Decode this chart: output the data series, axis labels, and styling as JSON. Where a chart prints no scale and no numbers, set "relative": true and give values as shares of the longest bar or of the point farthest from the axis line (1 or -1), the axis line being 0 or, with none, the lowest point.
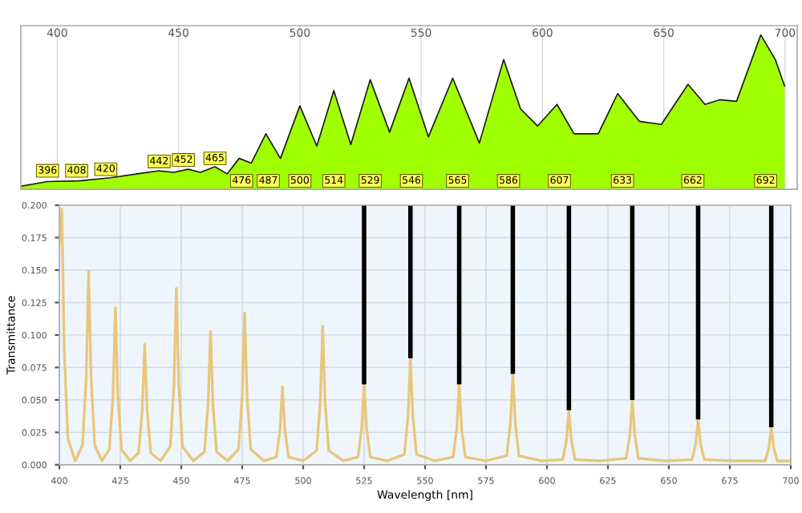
{
  "chart_data": [
    {
      "type": "area",
      "relative": true,
      "xlim": [
        385,
        705
      ],
      "xticks": [
        400,
        450,
        500,
        550,
        600,
        650,
        700
      ],
      "grid": true,
      "tick_labels": "x",
      "x": [
        385,
        396,
        409,
        422,
        433,
        442,
        448,
        454,
        459,
        465,
        470,
        475,
        480,
        486,
        492,
        500,
        507,
        514,
        521,
        529,
        537,
        545,
        553,
        563,
        574,
        584,
        591,
        598,
        606,
        613,
        623,
        631,
        640,
        649,
        660,
        667,
        673,
        680,
        690,
        696,
        699.8
      ],
      "series": [
        {
          "color": "#1a1a1a",
          "values": [
            0.02,
            0.05,
            0.055,
            0.075,
            0.1,
            0.12,
            0.11,
            0.13,
            0.11,
            0.146,
            0.1,
            0.2,
            0.17,
            0.36,
            0.2,
            0.54,
            0.28,
            0.64,
            0.29,
            0.71,
            0.37,
            0.72,
            0.34,
            0.72,
            0.3,
            0.84,
            0.52,
            0.41,
            0.55,
            0.36,
            0.36,
            0.62,
            0.44,
            0.42,
            0.68,
            0.55,
            0.58,
            0.57,
            1.0,
            0.84,
            0.67
          ],
          "colors": [
            "#2a0033",
            "#4b0060",
            "#5a00a0",
            "#4a00c8",
            "#3000e0",
            "#1a10ff",
            "#0030ff",
            "#0050ff",
            "#0070ff",
            "#0090ff",
            "#00a8ff",
            "#00c0f0",
            "#00e0e0",
            "#00f0c0",
            "#00ff90",
            "#00ff40",
            "#20ff00",
            "#40ff00",
            "#60ff00",
            "#80ff00",
            "#a0ff00",
            "#c0ff00",
            "#e0ff00",
            "#f8ff00",
            "#ffff00",
            "#ffe800",
            "#ffd000",
            "#ffb800",
            "#ffa000",
            "#ff8000",
            "#ff5000",
            "#ff3000",
            "#ff1000",
            "#f00000",
            "#e00000",
            "#d00000",
            "#c00000",
            "#b00000",
            "#a00000",
            "#900000",
            "#800000"
          ]
        }
      ],
      "annotations": [
        {
          "text": "396",
          "x": 396,
          "y": 0.12
        },
        {
          "text": "408",
          "x": 408,
          "y": 0.12
        },
        {
          "text": "420",
          "x": 420,
          "y": 0.13
        },
        {
          "text": "442",
          "x": 442,
          "y": 0.18
        },
        {
          "text": "452",
          "x": 452,
          "y": 0.19
        },
        {
          "text": "465",
          "x": 465,
          "y": 0.2
        },
        {
          "text": "476",
          "x": 476,
          "y": 0.055
        },
        {
          "text": "487",
          "x": 487,
          "y": 0.055
        },
        {
          "text": "500",
          "x": 500,
          "y": 0.055
        },
        {
          "text": "514",
          "x": 514,
          "y": 0.055
        },
        {
          "text": "529",
          "x": 529,
          "y": 0.055
        },
        {
          "text": "546",
          "x": 546,
          "y": 0.055
        },
        {
          "text": "565",
          "x": 565,
          "y": 0.055
        },
        {
          "text": "586",
          "x": 586,
          "y": 0.055
        },
        {
          "text": "607",
          "x": 607,
          "y": 0.055
        },
        {
          "text": "633",
          "x": 633,
          "y": 0.055
        },
        {
          "text": "662",
          "x": 662,
          "y": 0.055
        },
        {
          "text": "692",
          "x": 692,
          "y": 0.055
        }
      ]
    },
    {
      "type": "line",
      "xlabel": "Wavelength [nm]",
      "ylabel": "Transmittance",
      "grid": true,
      "xlim": [
        400,
        700
      ],
      "xticks": [
        400,
        425,
        450,
        475,
        500,
        525,
        550,
        575,
        600,
        625,
        650,
        675,
        700
      ],
      "ylim": [
        0,
        0.2
      ],
      "yticks": [
        {
          "value": 0,
          "label": "0.000"
        },
        {
          "value": 0.025,
          "label": "0.025"
        },
        {
          "value": 0.05,
          "label": "0.050"
        },
        {
          "value": 0.075,
          "label": "0.075"
        },
        {
          "value": 0.1,
          "label": "0.100"
        },
        {
          "value": 0.125,
          "label": "0.125"
        },
        {
          "value": 0.15,
          "label": "0.150"
        },
        {
          "value": 0.175,
          "label": "0.175"
        },
        {
          "value": 0.2,
          "label": "0.200"
        }
      ],
      "series": [
        {
          "color": "#e8c77a",
          "x": [
            400,
            401,
            402,
            403.5,
            406.5,
            409.5,
            411,
            412,
            413,
            414.5,
            417.5,
            420.5,
            422,
            423,
            424,
            425.5,
            429,
            432.5,
            434,
            435,
            436,
            437.5,
            441.5,
            445.5,
            447,
            448,
            449,
            450.5,
            455,
            459.5,
            461,
            462,
            463,
            464.5,
            469,
            473.5,
            475,
            476,
            477,
            478.5,
            484,
            489,
            490.5,
            491.5,
            492.5,
            494,
            500,
            505.5,
            507,
            508,
            509,
            510.5,
            516.5,
            522.5,
            524,
            525,
            526,
            527.5,
            534.5,
            541.5,
            543,
            544,
            545,
            546.5,
            554,
            561.5,
            563,
            564,
            565,
            566.5,
            575,
            583.5,
            585,
            586,
            587,
            588.5,
            597.5,
            606.5,
            608,
            609,
            610,
            611.5,
            622,
            632.5,
            634,
            635,
            636,
            637.5,
            648.5,
            659.5,
            661,
            662,
            663,
            664.5,
            677,
            689.5,
            691,
            692,
            693,
            694.5,
            700
          ],
          "values": [
            0.17,
            0.197,
            0.089,
            0.02,
            0.003,
            0.015,
            0.067,
            0.149,
            0.067,
            0.015,
            0.003,
            0.012,
            0.054,
            0.121,
            0.054,
            0.012,
            0.003,
            0.009,
            0.042,
            0.093,
            0.042,
            0.009,
            0.003,
            0.014,
            0.061,
            0.136,
            0.061,
            0.014,
            0.003,
            0.01,
            0.046,
            0.103,
            0.046,
            0.01,
            0.003,
            0.012,
            0.053,
            0.117,
            0.053,
            0.012,
            0.003,
            0.006,
            0.027,
            0.06,
            0.027,
            0.006,
            0.003,
            0.011,
            0.048,
            0.107,
            0.048,
            0.011,
            0.003,
            0.006,
            0.028,
            0.062,
            0.028,
            0.006,
            0.003,
            0.008,
            0.037,
            0.082,
            0.037,
            0.008,
            0.003,
            0.006,
            0.028,
            0.062,
            0.028,
            0.006,
            0.003,
            0.007,
            0.032,
            0.07,
            0.032,
            0.007,
            0.003,
            0.004,
            0.019,
            0.042,
            0.019,
            0.004,
            0.003,
            0.005,
            0.023,
            0.05,
            0.023,
            0.005,
            0.003,
            0.004,
            0.016,
            0.035,
            0.016,
            0.004,
            0.003,
            0.003,
            0.013,
            0.029,
            0.013,
            0.003,
            0.003
          ]
        }
      ],
      "ref_lines": [
        {
          "axis": "x",
          "value": 525,
          "color": "#000000"
        },
        {
          "axis": "x",
          "value": 544,
          "color": "#000000"
        },
        {
          "axis": "x",
          "value": 564,
          "color": "#000000"
        },
        {
          "axis": "x",
          "value": 586,
          "color": "#000000"
        },
        {
          "axis": "x",
          "value": 609,
          "color": "#000000"
        },
        {
          "axis": "x",
          "value": 635,
          "color": "#000000"
        },
        {
          "axis": "x",
          "value": 662,
          "color": "#000000"
        },
        {
          "axis": "x",
          "value": 692,
          "color": "#000000"
        }
      ]
    }
  ]
}
